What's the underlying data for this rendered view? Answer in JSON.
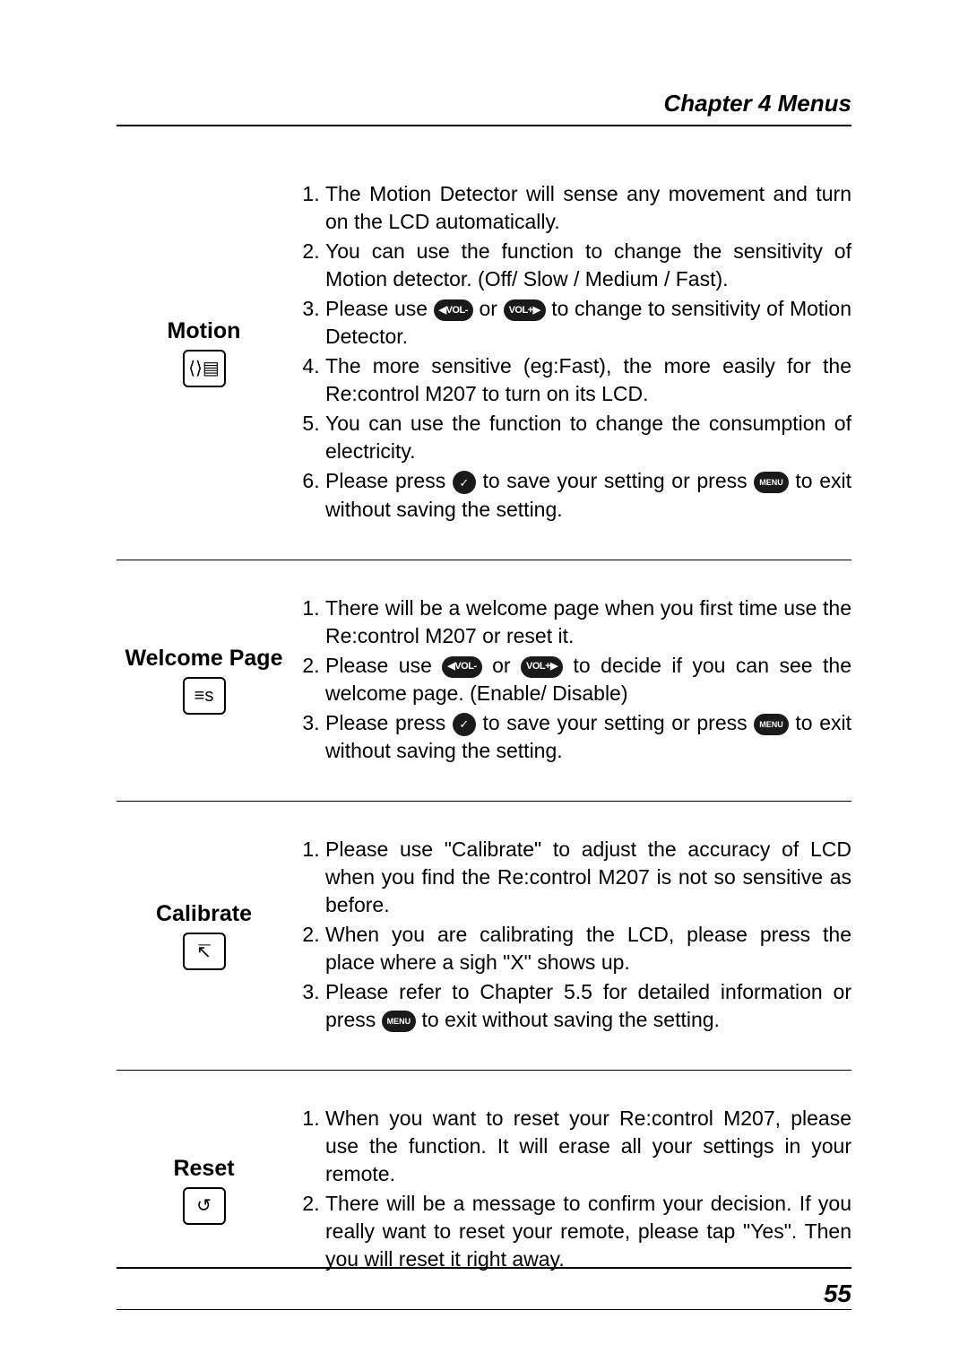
{
  "chapterHeader": "Chapter 4 Menus",
  "pageNumber": "55",
  "icons": {
    "volMinus": "◀VOL-",
    "volPlus": "VOL+▶",
    "confirm": "✓",
    "menu": "MENU",
    "motionGlyph": "⟨⟩▤",
    "welcomeGlyph": "≡s",
    "calibrateGlyph": "↸",
    "resetGlyph": "↺"
  },
  "sections": [
    {
      "title": "Motion",
      "iconKey": "motionGlyph",
      "items": [
        {
          "type": "text",
          "text": "The Motion Detector will sense any movement and turn on the LCD automatically."
        },
        {
          "type": "text",
          "text": "You can use the function to change the sensitivity of Motion detector. (Off/ Slow / Medium / Fast)."
        },
        {
          "type": "mixed",
          "parts": [
            {
              "t": "text",
              "v": "Please use "
            },
            {
              "t": "pill",
              "v": "volMinus"
            },
            {
              "t": "text",
              "v": " or "
            },
            {
              "t": "pill",
              "v": "volPlus"
            },
            {
              "t": "text",
              "v": " to change to sensitivity of Motion Detector."
            }
          ]
        },
        {
          "type": "text",
          "text": "The more sensitive (eg:Fast), the more easily for the Re:control M207 to turn on its LCD."
        },
        {
          "type": "text",
          "text": "You can use the function to change the consumption of electricity."
        },
        {
          "type": "mixed",
          "parts": [
            {
              "t": "text",
              "v": "Please press "
            },
            {
              "t": "round",
              "v": "confirm"
            },
            {
              "t": "text",
              "v": " to save your setting or press "
            },
            {
              "t": "menu",
              "v": "menu"
            },
            {
              "t": "text",
              "v": " to exit without saving the setting."
            }
          ]
        }
      ]
    },
    {
      "title": "Welcome Page",
      "iconKey": "welcomeGlyph",
      "items": [
        {
          "type": "text",
          "text": "There will be a welcome page when you first time use the Re:control M207 or reset it."
        },
        {
          "type": "mixed",
          "parts": [
            {
              "t": "text",
              "v": "Please use "
            },
            {
              "t": "pill",
              "v": "volMinus"
            },
            {
              "t": "text",
              "v": " or "
            },
            {
              "t": "pill",
              "v": "volPlus"
            },
            {
              "t": "text",
              "v": " to decide if you can see the welcome page. (Enable/ Disable)"
            }
          ]
        },
        {
          "type": "mixed",
          "parts": [
            {
              "t": "text",
              "v": "Please press "
            },
            {
              "t": "round",
              "v": "confirm"
            },
            {
              "t": "text",
              "v": " to save your setting or press "
            },
            {
              "t": "menu",
              "v": "menu"
            },
            {
              "t": "text",
              "v": " to exit without saving the setting."
            }
          ]
        }
      ]
    },
    {
      "title": "Calibrate",
      "iconKey": "calibrateGlyph",
      "items": [
        {
          "type": "text",
          "text": "Please use \"Calibrate\" to adjust the accuracy of LCD when you find the Re:control M207 is not so sensitive as before."
        },
        {
          "type": "text",
          "text": "When you are calibrating the LCD, please press the place where a sigh \"X\" shows up."
        },
        {
          "type": "mixed",
          "parts": [
            {
              "t": "text",
              "v": "Please refer to Chapter 5.5 for detailed information or press "
            },
            {
              "t": "menu",
              "v": "menu"
            },
            {
              "t": "text",
              "v": " to exit without saving the setting."
            }
          ]
        }
      ]
    },
    {
      "title": "Reset",
      "iconKey": "resetGlyph",
      "items": [
        {
          "type": "text",
          "text": "When you want to reset your Re:control M207, please use the function. It will erase all your settings in your remote."
        },
        {
          "type": "text",
          "text": "There will be a message to confirm your decision. If you really want to reset your remote, please tap \"Yes\". Then you will reset it right away."
        }
      ]
    }
  ]
}
